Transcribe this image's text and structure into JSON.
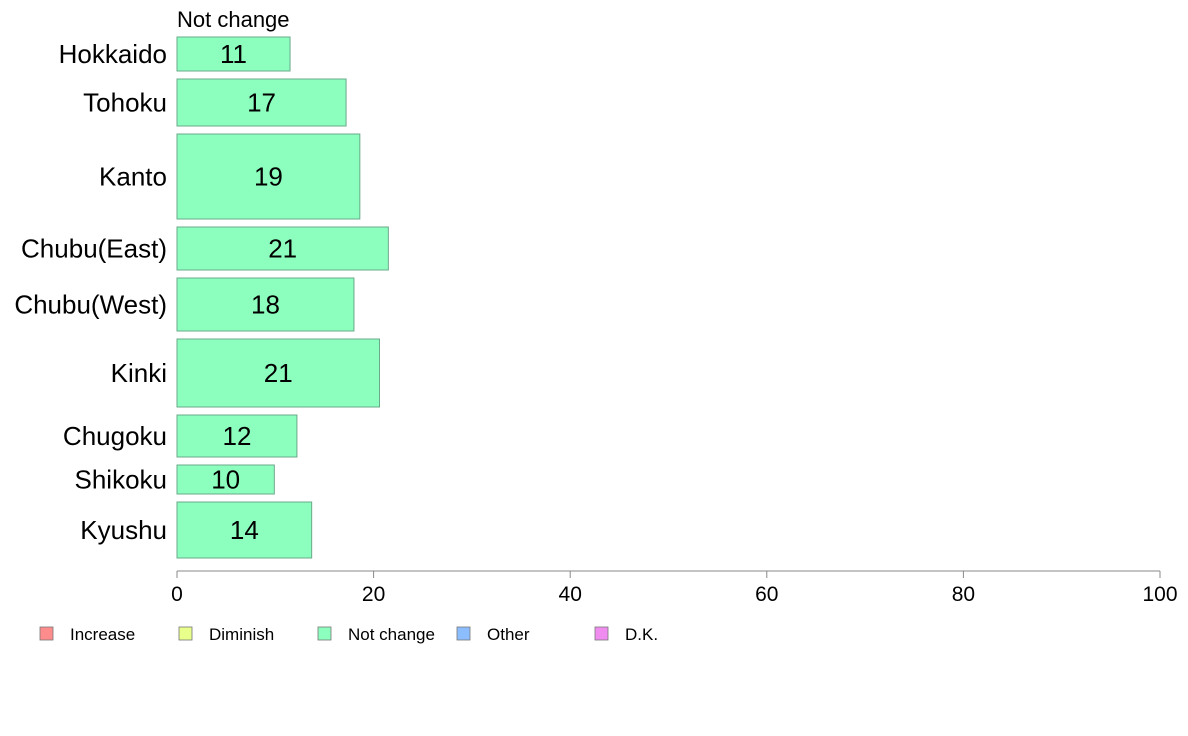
{
  "chart_data": {
    "type": "bar",
    "orientation": "horizontal",
    "panel_title": "Not change",
    "categories": [
      "Hokkaido",
      "Tohoku",
      "Kanto",
      "Chubu(East)",
      "Chubu(West)",
      "Kinki",
      "Chugoku",
      "Shikoku",
      "Kyushu"
    ],
    "series": [
      {
        "name": "Not change",
        "color": "#8cffbe",
        "values": [
          11.5,
          17.2,
          18.6,
          21.5,
          18.0,
          20.6,
          12.2,
          9.9,
          13.7
        ],
        "value_labels": [
          "11",
          "17",
          "19",
          "21",
          "18",
          "21",
          "12",
          "10",
          "14"
        ]
      }
    ],
    "xlim": [
      0,
      100
    ],
    "x_ticks": [
      0,
      20,
      40,
      60,
      80,
      100
    ],
    "grid": false,
    "legend_position": "bottom",
    "legend": [
      {
        "label": "Increase",
        "color": "#ff8c8c"
      },
      {
        "label": "Diminish",
        "color": "#e8ff8c"
      },
      {
        "label": "Not change",
        "color": "#8cffbe"
      },
      {
        "label": "Other",
        "color": "#8cbeff"
      },
      {
        "label": "D.K.",
        "color": "#f08cf0"
      }
    ]
  }
}
